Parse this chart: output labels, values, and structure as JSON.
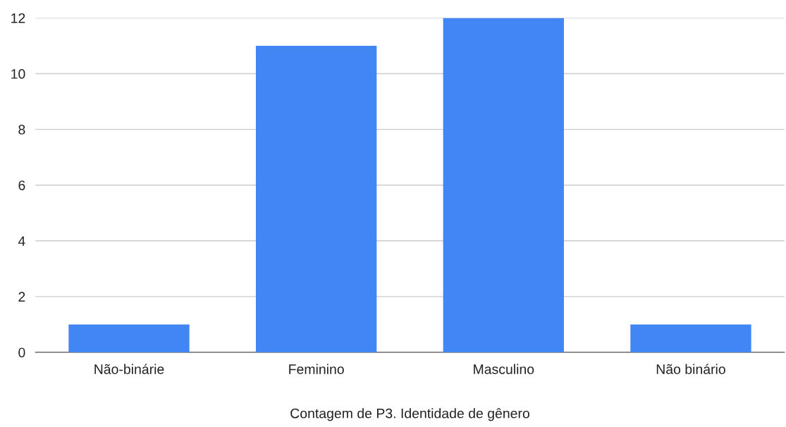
{
  "chart_data": {
    "type": "bar",
    "xlabel": "Contagem de P3. Identidade de gênero",
    "categories": [
      "Não-binárie",
      "Feminino",
      "Masculino",
      "Não binário"
    ],
    "values": [
      1,
      11,
      12,
      1
    ],
    "color": "#4285f4",
    "ylim": [
      0,
      12
    ],
    "yticks": [
      0,
      2,
      4,
      6,
      8,
      10,
      12
    ],
    "grid": "y"
  }
}
